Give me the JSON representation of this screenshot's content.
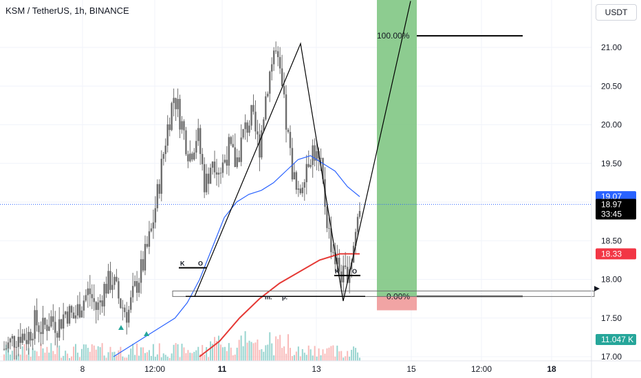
{
  "title": "KSM / TetherUS, 1h, BINANCE",
  "currency_button": "USDT",
  "colors": {
    "up": "#26a69a",
    "candle": "#6d6d6d",
    "ma_fast": "#2962ff",
    "ma_slow": "#e53935",
    "target_zone": "#81c784",
    "stop_zone": "#ef9a9a",
    "price_line": "#2962ff",
    "blue_tag": "#2962ff",
    "black_tag": "#000000",
    "red_tag": "#f23645",
    "teal_tag": "#26a69a"
  },
  "price_tags": {
    "blue": "19.07",
    "last_price": "18.97",
    "countdown": "33:45",
    "red": "18.33",
    "volume": "11.047 K"
  },
  "pattern_labels": {
    "k_left": "K",
    "o_left": "O",
    "k_right": "K",
    "o_right": "O",
    "m": "m.",
    "p": "p."
  },
  "position_tool": {
    "target_pct": "100.00%",
    "stop_pct": "0.00%"
  },
  "chart_data": {
    "type": "candlestick",
    "symbol": "KSM / TetherUS",
    "interval": "1h",
    "exchange": "BINANCE",
    "y_ticks": [
      "21.00",
      "20.50",
      "20.00",
      "19.50",
      "19.00",
      "18.50",
      "18.00",
      "17.50",
      "17.00"
    ],
    "ylim": [
      16.95,
      21.6
    ],
    "x_ticks": [
      {
        "label": "8",
        "bold": false
      },
      {
        "label": "12:00",
        "bold": false
      },
      {
        "label": "11",
        "bold": true
      },
      {
        "label": "13",
        "bold": false
      },
      {
        "label": "15",
        "bold": false
      },
      {
        "label": "12:00",
        "bold": false
      },
      {
        "label": "18",
        "bold": true
      }
    ],
    "current_price": 18.97,
    "fast_ma_label": 19.07,
    "slow_ma_label": 18.33,
    "volume_label": "11.047 K",
    "candle_path": [
      17.1,
      17.2,
      17.3,
      17.25,
      17.45,
      17.35,
      17.5,
      17.4,
      17.6,
      17.5,
      17.7,
      17.85,
      17.6,
      17.9,
      18.0,
      17.7,
      17.55,
      17.9,
      18.2,
      18.6,
      19.2,
      19.9,
      20.4,
      20.0,
      19.6,
      19.9,
      19.2,
      19.6,
      19.4,
      19.7,
      19.5,
      19.9,
      20.1,
      19.7,
      20.5,
      21.0,
      20.4,
      19.6,
      19.0,
      19.5,
      19.7,
      19.4,
      18.6,
      18.2,
      18.0,
      18.3,
      18.97
    ],
    "fast_ma": [
      17.0,
      17.1,
      17.2,
      17.3,
      17.4,
      17.5,
      17.7,
      18.0,
      18.4,
      18.8,
      19.0,
      19.1,
      19.15,
      19.25,
      19.4,
      19.55,
      19.6,
      19.5,
      19.4,
      19.2,
      19.07
    ],
    "slow_ma": [
      17.0,
      17.2,
      17.5,
      17.75,
      17.95,
      18.1,
      18.25,
      18.33,
      18.33
    ],
    "pattern_lines": {
      "w_shape": [
        17.78,
        21.05,
        17.72,
        21.6
      ],
      "neckline_left": 18.15,
      "neckline_right": 18.05,
      "support": 17.78
    }
  }
}
